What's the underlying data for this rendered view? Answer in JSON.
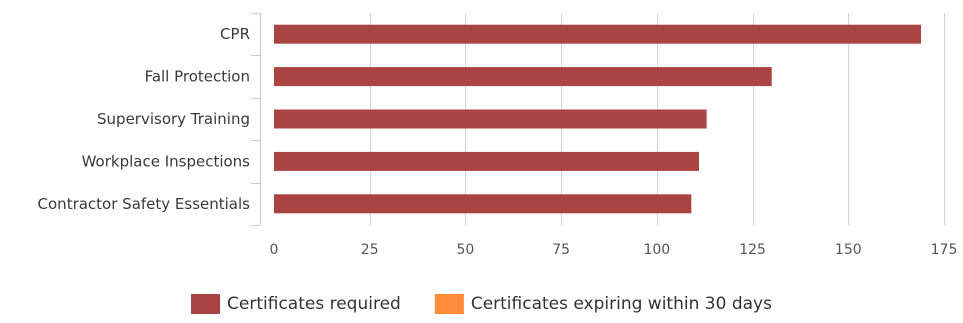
{
  "chart_data": {
    "type": "bar",
    "orientation": "horizontal",
    "categories": [
      "CPR",
      "Fall Protection",
      "Supervisory Training",
      "Workplace Inspections",
      "Contractor Safety Essentials"
    ],
    "series": [
      {
        "name": "Certificates required",
        "color": "#a94442",
        "values": [
          169,
          130,
          113,
          111,
          109
        ]
      },
      {
        "name": "Certificates expiring within 30 days",
        "color": "#ff8c3a",
        "values": [
          0,
          0,
          0,
          0,
          0
        ]
      }
    ],
    "x_ticks": [
      0,
      25,
      50,
      75,
      100,
      125,
      150,
      175
    ],
    "xlim": [
      0,
      175
    ],
    "grid": true,
    "legend_position": "bottom"
  }
}
